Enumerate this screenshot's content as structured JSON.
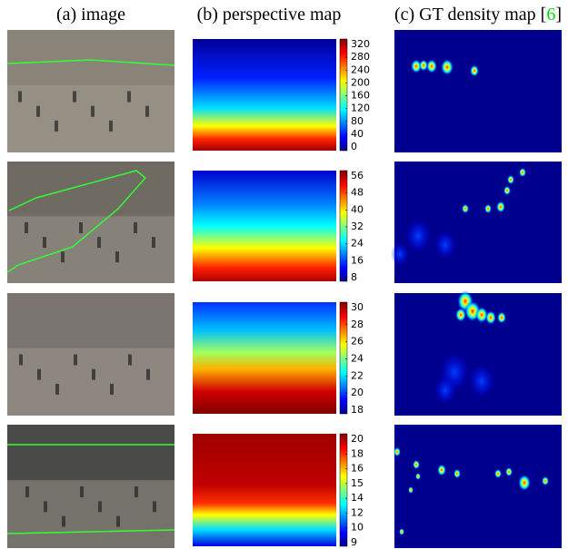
{
  "headers": [
    {
      "text": "(a) image"
    },
    {
      "text": "(b) perspective map"
    },
    {
      "text": "(c) GT density map [",
      "cite": "6",
      "close": "]"
    }
  ],
  "rows": [
    {
      "colorbar_ticks": [
        "320",
        "280",
        "240",
        "200",
        "160",
        "120",
        "80",
        "40",
        "0"
      ]
    },
    {
      "colorbar_ticks": [
        "56",
        "48",
        "40",
        "32",
        "24",
        "16",
        "8"
      ]
    },
    {
      "colorbar_ticks": [
        "30",
        "28",
        "26",
        "24",
        "22",
        "20",
        "18"
      ]
    },
    {
      "colorbar_ticks": [
        "20",
        "18",
        "16",
        "15",
        "14",
        "12",
        "10",
        "9"
      ]
    }
  ]
}
